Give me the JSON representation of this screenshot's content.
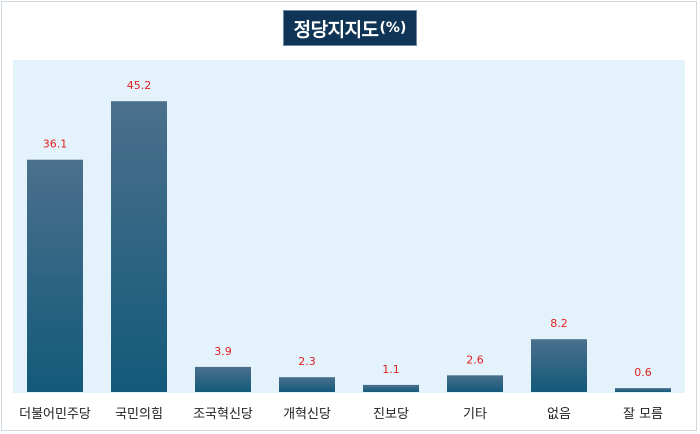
{
  "title": {
    "main": "정당지지도",
    "unit": "(%)"
  },
  "colors": {
    "title_bg": "#0f3456",
    "plot_bg": "#e4f3fb",
    "bar_top": "#4b708c",
    "bar_bottom": "#13597a",
    "value_label": "#e0201f"
  },
  "chart_data": {
    "type": "bar",
    "title": "정당지지도(%)",
    "categories": [
      "더불어민주당",
      "국민의힘",
      "조국혁신당",
      "개혁신당",
      "진보당",
      "기타",
      "없음",
      "잘 모름"
    ],
    "values": [
      36.1,
      45.2,
      3.9,
      2.3,
      1.1,
      2.6,
      8.2,
      0.6
    ],
    "value_labels": [
      "36.1",
      "45.2",
      "3.9",
      "2.3",
      "1.1",
      "2.6",
      "8.2",
      "0.6"
    ],
    "xlabel": "",
    "ylabel": "",
    "ylim": [
      0,
      51.6
    ],
    "grid": false,
    "legend": "none"
  }
}
